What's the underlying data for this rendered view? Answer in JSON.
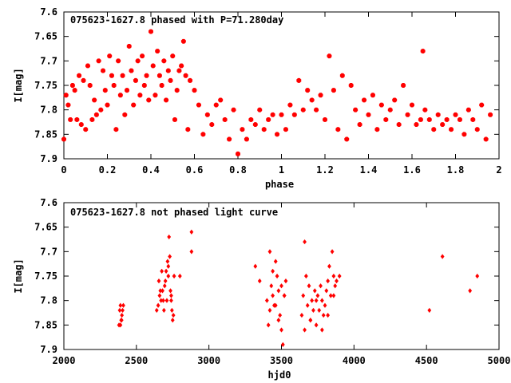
{
  "chart_data": [
    {
      "type": "scatter",
      "title": "075623-1627.8 phased with P=71.280day",
      "xlabel": "phase",
      "ylabel": "I[mag]",
      "xlim": [
        0,
        2
      ],
      "ylim": [
        7.6,
        7.9
      ],
      "y_inverted": true,
      "grid": false,
      "marker_color": "#ff0000",
      "xticks": [
        0,
        0.2,
        0.4,
        0.6,
        0.8,
        1,
        1.2,
        1.4,
        1.6,
        1.8,
        2
      ],
      "xtick_labels": [
        "0",
        "0.2",
        "0.4",
        "0.6",
        "0.8",
        "1",
        "1.2",
        "1.4",
        "1.6",
        "1.8",
        "2"
      ],
      "yticks": [
        7.6,
        7.65,
        7.7,
        7.75,
        7.8,
        7.85,
        7.9
      ],
      "ytick_labels": [
        "7.6",
        "7.65",
        "7.7",
        "7.75",
        "7.8",
        "7.85",
        "7.9"
      ],
      "x": [
        0.0,
        0.01,
        0.02,
        0.03,
        0.04,
        0.05,
        0.06,
        0.07,
        0.08,
        0.09,
        0.1,
        0.11,
        0.12,
        0.13,
        0.14,
        0.15,
        0.16,
        0.17,
        0.18,
        0.19,
        0.2,
        0.21,
        0.22,
        0.23,
        0.24,
        0.25,
        0.26,
        0.27,
        0.28,
        0.29,
        0.3,
        0.31,
        0.32,
        0.33,
        0.34,
        0.35,
        0.36,
        0.37,
        0.38,
        0.39,
        0.4,
        0.41,
        0.42,
        0.43,
        0.44,
        0.45,
        0.46,
        0.47,
        0.48,
        0.49,
        0.5,
        0.51,
        0.52,
        0.53,
        0.54,
        0.55,
        0.56,
        0.57,
        0.58,
        0.6,
        0.62,
        0.64,
        0.66,
        0.68,
        0.7,
        0.72,
        0.74,
        0.76,
        0.78,
        0.8,
        0.82,
        0.84,
        0.86,
        0.88,
        0.9,
        0.92,
        0.94,
        0.96,
        0.98,
        1.0,
        1.02,
        1.04,
        1.06,
        1.08,
        1.1,
        1.12,
        1.14,
        1.16,
        1.18,
        1.2,
        1.22,
        1.24,
        1.26,
        1.28,
        1.3,
        1.32,
        1.34,
        1.36,
        1.38,
        1.4,
        1.42,
        1.44,
        1.46,
        1.48,
        1.5,
        1.52,
        1.54,
        1.56,
        1.58,
        1.6,
        1.62,
        1.64,
        1.65,
        1.66,
        1.68,
        1.7,
        1.72,
        1.74,
        1.76,
        1.78,
        1.8,
        1.82,
        1.84,
        1.86,
        1.88,
        1.9,
        1.92,
        1.94,
        1.96
      ],
      "y": [
        7.86,
        7.77,
        7.79,
        7.82,
        7.75,
        7.76,
        7.82,
        7.73,
        7.83,
        7.74,
        7.84,
        7.71,
        7.75,
        7.82,
        7.78,
        7.81,
        7.7,
        7.8,
        7.72,
        7.76,
        7.79,
        7.69,
        7.73,
        7.75,
        7.84,
        7.7,
        7.77,
        7.73,
        7.81,
        7.76,
        7.67,
        7.72,
        7.79,
        7.74,
        7.7,
        7.77,
        7.69,
        7.75,
        7.73,
        7.78,
        7.64,
        7.71,
        7.77,
        7.68,
        7.73,
        7.75,
        7.7,
        7.78,
        7.72,
        7.74,
        7.69,
        7.82,
        7.76,
        7.72,
        7.71,
        7.66,
        7.73,
        7.84,
        7.74,
        7.76,
        7.79,
        7.85,
        7.81,
        7.83,
        7.79,
        7.78,
        7.82,
        7.86,
        7.8,
        7.89,
        7.84,
        7.86,
        7.82,
        7.83,
        7.8,
        7.84,
        7.82,
        7.81,
        7.85,
        7.81,
        7.84,
        7.79,
        7.81,
        7.74,
        7.8,
        7.76,
        7.78,
        7.8,
        7.77,
        7.82,
        7.69,
        7.76,
        7.84,
        7.73,
        7.86,
        7.75,
        7.8,
        7.83,
        7.78,
        7.81,
        7.77,
        7.84,
        7.79,
        7.82,
        7.8,
        7.78,
        7.83,
        7.75,
        7.81,
        7.79,
        7.83,
        7.82,
        7.68,
        7.8,
        7.82,
        7.84,
        7.81,
        7.83,
        7.82,
        7.84,
        7.81,
        7.82,
        7.85,
        7.8,
        7.82,
        7.84,
        7.79,
        7.86,
        7.81
      ]
    },
    {
      "type": "scatter",
      "title": "075623-1627.8 not phased light curve",
      "xlabel": "hjd0",
      "ylabel": "I[mag]",
      "xlim": [
        2000,
        5000
      ],
      "ylim": [
        7.6,
        7.9
      ],
      "y_inverted": true,
      "grid": false,
      "marker_color": "#ff0000",
      "xticks": [
        2000,
        2500,
        3000,
        3500,
        4000,
        4500,
        5000
      ],
      "xtick_labels": [
        "2000",
        "2500",
        "3000",
        "3500",
        "4000",
        "4500",
        "5000"
      ],
      "yticks": [
        7.6,
        7.65,
        7.7,
        7.75,
        7.8,
        7.85,
        7.9
      ],
      "ytick_labels": [
        "7.6",
        "7.65",
        "7.7",
        "7.75",
        "7.8",
        "7.85",
        "7.9"
      ],
      "x": [
        2380,
        2385,
        2390,
        2395,
        2400,
        2405,
        2410,
        2390,
        2398,
        2640,
        2650,
        2660,
        2670,
        2680,
        2690,
        2700,
        2705,
        2710,
        2715,
        2720,
        2725,
        2730,
        2735,
        2740,
        2745,
        2750,
        2760,
        2655,
        2665,
        2675,
        2685,
        2695,
        2720,
        2740,
        2755,
        2800,
        2880,
        2880,
        3320,
        3350,
        3400,
        3410,
        3420,
        3430,
        3440,
        3450,
        3460,
        3470,
        3480,
        3490,
        3500,
        3510,
        3520,
        3530,
        3420,
        3440,
        3460,
        3480,
        3500,
        3520,
        3640,
        3650,
        3660,
        3670,
        3680,
        3690,
        3700,
        3710,
        3720,
        3730,
        3740,
        3750,
        3760,
        3770,
        3780,
        3790,
        3800,
        3810,
        3820,
        3830,
        3840,
        3850,
        3860,
        3870,
        3880,
        3900,
        3660,
        3700,
        3740,
        3780,
        3820,
        3860,
        4520,
        4610,
        4800,
        4850
      ],
      "y": [
        7.85,
        7.82,
        7.81,
        7.84,
        7.83,
        7.82,
        7.81,
        7.85,
        7.84,
        7.82,
        7.81,
        7.79,
        7.8,
        7.78,
        7.82,
        7.76,
        7.74,
        7.8,
        7.72,
        7.75,
        7.67,
        7.71,
        7.78,
        7.8,
        7.82,
        7.84,
        7.75,
        7.76,
        7.78,
        7.74,
        7.8,
        7.77,
        7.73,
        7.79,
        7.83,
        7.75,
        7.66,
        7.7,
        7.73,
        7.76,
        7.8,
        7.85,
        7.82,
        7.77,
        7.79,
        7.81,
        7.72,
        7.75,
        7.78,
        7.83,
        7.86,
        7.89,
        7.79,
        7.76,
        7.7,
        7.74,
        7.81,
        7.84,
        7.77,
        7.79,
        7.83,
        7.79,
        7.86,
        7.75,
        7.81,
        7.77,
        7.84,
        7.8,
        7.82,
        7.78,
        7.85,
        7.79,
        7.82,
        7.77,
        7.8,
        7.83,
        7.81,
        7.78,
        7.76,
        7.73,
        7.79,
        7.7,
        7.75,
        7.77,
        7.76,
        7.75,
        7.68,
        7.84,
        7.8,
        7.86,
        7.83,
        7.79,
        7.82,
        7.71,
        7.78,
        7.75
      ]
    }
  ]
}
